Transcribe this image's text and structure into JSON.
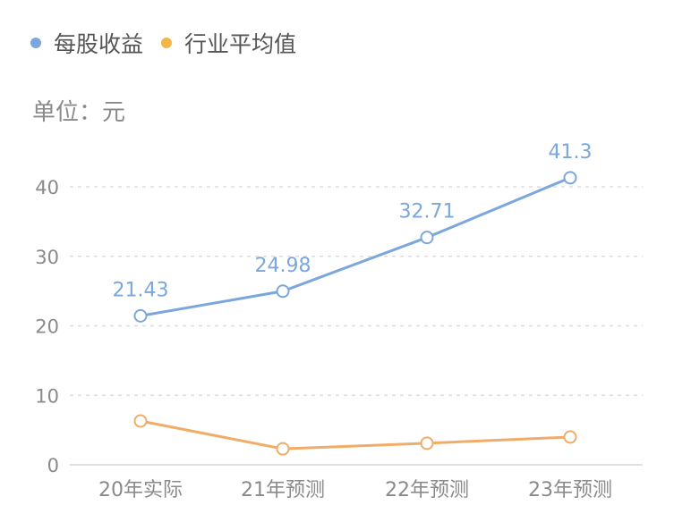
{
  "legend": {
    "items": [
      {
        "label": "每股收益",
        "color": "#7ba7dc"
      },
      {
        "label": "行业平均值",
        "color": "#f2b54a"
      }
    ]
  },
  "unit_label": "单位：元",
  "colors": {
    "eps": "#7ba7dc",
    "industry": "#f0ad6a",
    "grid": "#dddddd",
    "axis_text": "#8a8a8a"
  },
  "chart_data": {
    "type": "line",
    "title": "",
    "xlabel": "",
    "ylabel": "单位：元",
    "categories": [
      "20年实际",
      "21年预测",
      "22年预测",
      "23年预测"
    ],
    "series": [
      {
        "name": "每股收益",
        "values": [
          21.43,
          24.98,
          32.71,
          41.3
        ],
        "labels": [
          "21.43",
          "24.98",
          "32.71",
          "41.3"
        ]
      },
      {
        "name": "行业平均值",
        "values": [
          6.3,
          2.3,
          3.1,
          4.0
        ]
      }
    ],
    "ylim": [
      0,
      40
    ],
    "yticks": [
      "0",
      "10",
      "20",
      "30",
      "40"
    ],
    "grid": true,
    "legend_position": "top-left"
  }
}
